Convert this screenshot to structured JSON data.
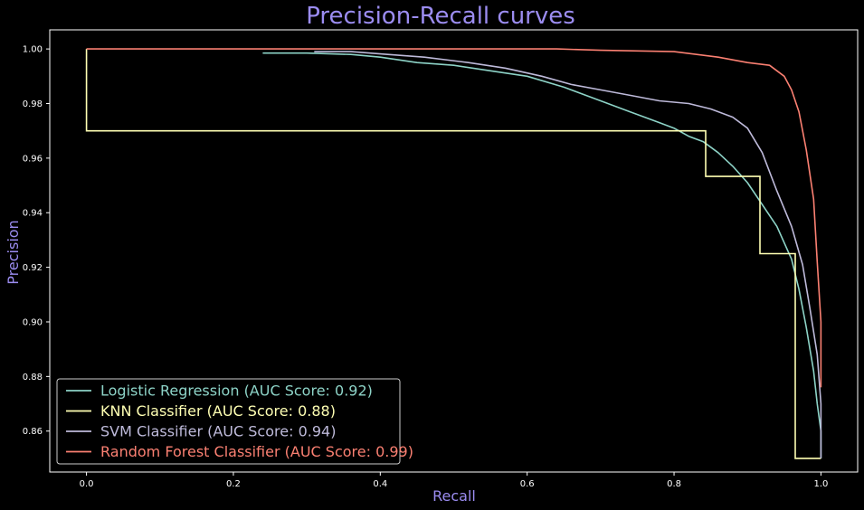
{
  "chart_data": {
    "type": "line",
    "title": "Precision-Recall curves",
    "xlabel": "Recall",
    "ylabel": "Precision",
    "xlim": [
      -0.05,
      1.05
    ],
    "ylim": [
      0.845,
      1.007
    ],
    "x_ticks": [
      "0.0",
      "0.2",
      "0.4",
      "0.6",
      "0.8",
      "1.0"
    ],
    "y_ticks": [
      "0.86",
      "0.88",
      "0.90",
      "0.92",
      "0.94",
      "0.96",
      "0.98",
      "1.00"
    ],
    "grid": false,
    "legend_position": "lower-left",
    "series": [
      {
        "name": "Logistic Regression (AUC Score: 0.92)",
        "color": "#8dd3c7",
        "points": [
          [
            0.24,
            0.9985
          ],
          [
            0.3,
            0.9985
          ],
          [
            0.36,
            0.998
          ],
          [
            0.4,
            0.997
          ],
          [
            0.45,
            0.995
          ],
          [
            0.5,
            0.994
          ],
          [
            0.55,
            0.992
          ],
          [
            0.6,
            0.99
          ],
          [
            0.65,
            0.986
          ],
          [
            0.7,
            0.981
          ],
          [
            0.74,
            0.977
          ],
          [
            0.78,
            0.973
          ],
          [
            0.8,
            0.971
          ],
          [
            0.82,
            0.968
          ],
          [
            0.84,
            0.966
          ],
          [
            0.86,
            0.962
          ],
          [
            0.88,
            0.957
          ],
          [
            0.9,
            0.951
          ],
          [
            0.92,
            0.943
          ],
          [
            0.94,
            0.935
          ],
          [
            0.96,
            0.923
          ],
          [
            0.97,
            0.912
          ],
          [
            0.98,
            0.898
          ],
          [
            0.99,
            0.882
          ],
          [
            0.995,
            0.87
          ],
          [
            1.0,
            0.86
          ],
          [
            1.0,
            0.85
          ]
        ]
      },
      {
        "name": "KNN Classifier (AUC Score: 0.88)",
        "color": "#ffffb3",
        "points": [
          [
            0.0,
            0.97
          ],
          [
            0.0,
            1.0
          ],
          [
            0.0,
            0.97
          ],
          [
            0.843,
            0.97
          ],
          [
            0.843,
            0.9533
          ],
          [
            0.917,
            0.9533
          ],
          [
            0.917,
            0.925
          ],
          [
            0.965,
            0.925
          ],
          [
            0.965,
            0.85
          ],
          [
            1.0,
            0.85
          ]
        ]
      },
      {
        "name": "SVM Classifier (AUC Score: 0.94)",
        "color": "#bebada",
        "points": [
          [
            0.31,
            0.999
          ],
          [
            0.36,
            0.999
          ],
          [
            0.41,
            0.998
          ],
          [
            0.46,
            0.997
          ],
          [
            0.52,
            0.995
          ],
          [
            0.57,
            0.993
          ],
          [
            0.62,
            0.99
          ],
          [
            0.66,
            0.987
          ],
          [
            0.7,
            0.985
          ],
          [
            0.74,
            0.983
          ],
          [
            0.78,
            0.981
          ],
          [
            0.82,
            0.98
          ],
          [
            0.85,
            0.978
          ],
          [
            0.88,
            0.975
          ],
          [
            0.9,
            0.971
          ],
          [
            0.92,
            0.962
          ],
          [
            0.94,
            0.948
          ],
          [
            0.96,
            0.935
          ],
          [
            0.975,
            0.921
          ],
          [
            0.985,
            0.905
          ],
          [
            0.995,
            0.888
          ],
          [
            1.0,
            0.87
          ],
          [
            1.0,
            0.85
          ]
        ]
      },
      {
        "name": "Random Forest Classifier (AUC Score: 0.99)",
        "color": "#fb8072",
        "points": [
          [
            0.0,
            1.0
          ],
          [
            0.64,
            1.0
          ],
          [
            0.7,
            0.9995
          ],
          [
            0.8,
            0.999
          ],
          [
            0.86,
            0.997
          ],
          [
            0.9,
            0.995
          ],
          [
            0.93,
            0.994
          ],
          [
            0.95,
            0.99
          ],
          [
            0.96,
            0.985
          ],
          [
            0.97,
            0.977
          ],
          [
            0.98,
            0.963
          ],
          [
            0.99,
            0.945
          ],
          [
            0.995,
            0.922
          ],
          [
            1.0,
            0.9
          ],
          [
            1.0,
            0.876
          ]
        ]
      }
    ]
  },
  "colors": {
    "background": "#000000",
    "title_color": "#9b8cf0",
    "tick_color": "#ffffff",
    "axes_edge": "#ffffff"
  }
}
